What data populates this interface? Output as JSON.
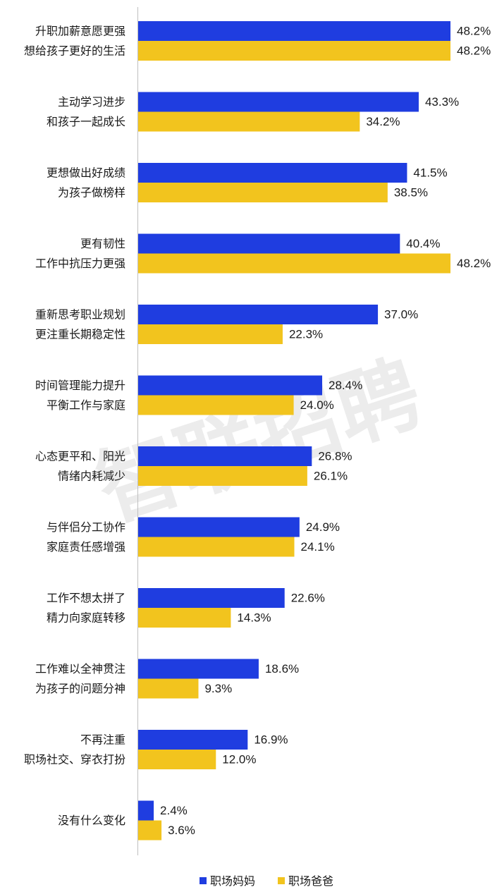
{
  "chart_data": {
    "type": "bar",
    "orientation": "horizontal",
    "categories": [
      [
        "升职加薪意愿更强",
        "想给孩子更好的生活"
      ],
      [
        "主动学习进步",
        "和孩子一起成长"
      ],
      [
        "更想做出好成绩",
        "为孩子做榜样"
      ],
      [
        "更有韧性",
        "工作中抗压力更强"
      ],
      [
        "重新思考职业规划",
        "更注重长期稳定性"
      ],
      [
        "时间管理能力提升",
        "平衡工作与家庭"
      ],
      [
        "心态更平和、阳光",
        "情绪内耗减少"
      ],
      [
        "与伴侣分工协作",
        "家庭责任感增强"
      ],
      [
        "工作不想太拼了",
        "精力向家庭转移"
      ],
      [
        "工作难以全神贯注",
        "为孩子的问题分神"
      ],
      [
        "不再注重",
        "职场社交、穿衣打扮"
      ],
      [
        "没有什么变化"
      ]
    ],
    "series": [
      {
        "name": "职场妈妈",
        "color": "#1f3de0",
        "values": [
          48.2,
          43.3,
          41.5,
          40.4,
          37.0,
          28.4,
          26.8,
          24.9,
          22.6,
          18.6,
          16.9,
          2.4
        ],
        "labels": [
          "48.2%",
          "43.3%",
          "41.5%",
          "40.4%",
          "37.0%",
          "28.4%",
          "26.8%",
          "24.9%",
          "22.6%",
          "18.6%",
          "16.9%",
          "2.4%"
        ]
      },
      {
        "name": "职场爸爸",
        "color": "#f2c41e",
        "values": [
          48.2,
          34.2,
          38.5,
          48.2,
          22.3,
          24.0,
          26.1,
          24.1,
          14.3,
          9.3,
          12.0,
          3.6
        ],
        "labels": [
          "48.2%",
          "34.2%",
          "38.5%",
          "48.2%",
          "22.3%",
          "24.0%",
          "26.1%",
          "24.1%",
          "14.3%",
          "9.3%",
          "12.0%",
          "3.6%"
        ]
      }
    ],
    "xlim": [
      0,
      48.2
    ],
    "grid": false,
    "legend_position": "bottom",
    "watermark": "智联招聘"
  }
}
